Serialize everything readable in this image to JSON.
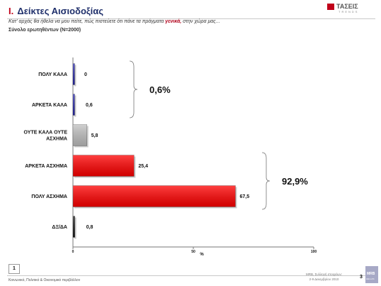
{
  "header": {
    "number": "Ι.",
    "title": "Δείκτες Αισιοδοξίας",
    "question_before": "Κατ' αρχάς θα ήθελα να μου πείτε, πώς πιστεύετε ότι πάνε τα πράγματα ",
    "question_emphasis": "γενικά,",
    "question_after": " στην χώρα μας...",
    "sample": "Σύνολο ερωτηθέντων (Ν=2000)"
  },
  "brand": {
    "name": "ΤΑΣΕΙΣ",
    "sub": "TRENDS"
  },
  "colors": {
    "title": "#1f2f6b",
    "accent": "#c0001a",
    "positive": "#1f1fb3",
    "neutral": "#c0c0c0",
    "negative": "#ff0000",
    "dk": "#111111"
  },
  "chart_data": {
    "type": "bar",
    "orientation": "horizontal",
    "categories": [
      "ΠΟΛΥ ΚΑΛΑ",
      "ΑΡΚΕΤΑ ΚΑΛΑ",
      "ΟΥΤΕ ΚΑΛΑ ΟΥΤΕ ΑΣΧΗΜΑ",
      "ΑΡΚΕΤΑ ΑΣΧΗΜΑ",
      "ΠΟΛΥ ΑΣΧΗΜΑ",
      "ΔΞ/ΔΑ"
    ],
    "values": [
      0,
      0.6,
      5.8,
      25.4,
      67.5,
      0.8
    ],
    "value_labels": [
      "0",
      "0,6",
      "5,8",
      "25,4",
      "67,5",
      "0,8"
    ],
    "bar_colors": [
      "#1f1fb3",
      "#1f1fb3",
      "#c0c0c0",
      "#ff0000",
      "#ff0000",
      "#111111"
    ],
    "xlabel": "%",
    "xlim": [
      0,
      100
    ],
    "xticks": [
      "0",
      "50",
      "100"
    ],
    "groups": [
      {
        "label": "0,6%",
        "from": 0,
        "to": 1
      },
      {
        "label": "92,9%",
        "from": 3,
        "to": 4
      }
    ]
  },
  "footer": {
    "page_box": "1",
    "left_text": "Κοινωνικό, Πολιτικό & Οικονομικό περιβάλλον",
    "right_line1": "MRB, Συλλογή στοιχείων:",
    "right_line2": "2-9 Δεκεμβρίου 2010",
    "page_number": "3",
    "logo_name": "MRB",
    "logo_sub": "HELLAS"
  }
}
